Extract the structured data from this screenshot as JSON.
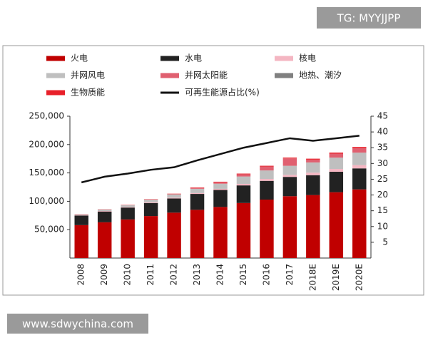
{
  "watermarks": {
    "top": "TG: MYYJJPP",
    "bottom": "www.sdwychina.com"
  },
  "chart_data": {
    "type": "stacked-bar-line",
    "categories": [
      "2008",
      "2009",
      "2010",
      "2011",
      "2012",
      "2013",
      "2014",
      "2015",
      "2016",
      "2017",
      "2018E",
      "2019E",
      "2020E"
    ],
    "series": [
      {
        "name": "火电",
        "color": "#c00000",
        "values": [
          58000,
          63000,
          68000,
          74000,
          80000,
          85000,
          90000,
          97000,
          103000,
          109000,
          111000,
          116000,
          121000
        ]
      },
      {
        "name": "水电",
        "color": "#222222",
        "values": [
          17000,
          19000,
          21000,
          23000,
          25000,
          28000,
          30000,
          31000,
          33000,
          34000,
          35000,
          36000,
          37000
        ]
      },
      {
        "name": "核电",
        "color": "#f4b6c2",
        "values": [
          900,
          900,
          1100,
          1300,
          1300,
          1500,
          2000,
          2700,
          3400,
          3600,
          4500,
          5000,
          5800
        ]
      },
      {
        "name": "并网风电",
        "color": "#bfbfbf",
        "values": [
          1200,
          2500,
          3000,
          4500,
          6000,
          7500,
          9000,
          13000,
          15000,
          16000,
          18000,
          20000,
          22000
        ]
      },
      {
        "name": "并网太阳能",
        "color": "#e06070",
        "values": [
          0,
          0,
          100,
          200,
          300,
          1500,
          2500,
          4000,
          7000,
          13000,
          5000,
          7000,
          8000
        ]
      },
      {
        "name": "地热、潮汐",
        "color": "#808080",
        "values": [
          10,
          10,
          10,
          10,
          10,
          10,
          10,
          10,
          10,
          10,
          10,
          10,
          10
        ]
      },
      {
        "name": "生物质能",
        "color": "#e8202a",
        "values": [
          300,
          400,
          500,
          600,
          800,
          900,
          1000,
          1100,
          1200,
          1400,
          1600,
          1800,
          2000
        ]
      },
      {
        "name": "可再生能源占比(%)",
        "color": "#111111",
        "axis": "y2",
        "values": [
          24,
          25.8,
          26.8,
          28,
          28.8,
          31,
          33,
          35,
          36.5,
          38,
          37.2,
          38,
          38.8
        ]
      }
    ],
    "ylim": [
      0,
      250000
    ],
    "yticks": [
      {
        "value": 50000,
        "label": "50,000"
      },
      {
        "value": 100000,
        "label": "100,000"
      },
      {
        "value": 150000,
        "label": "150,000"
      },
      {
        "value": 200000,
        "label": "200,000"
      },
      {
        "value": 250000,
        "label": "250,000"
      }
    ],
    "y2lim": [
      0,
      45
    ],
    "y2ticks": [
      5,
      10,
      15,
      20,
      25,
      30,
      35,
      40,
      45
    ]
  }
}
